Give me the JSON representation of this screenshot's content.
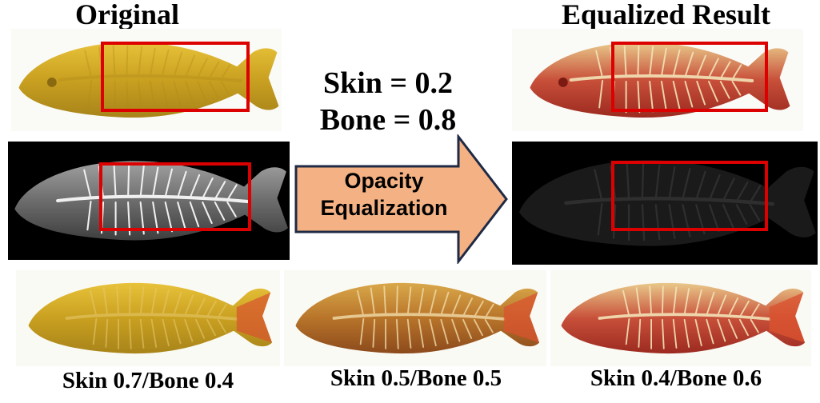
{
  "titles": {
    "original": "Original",
    "equalized": "Equalized Result"
  },
  "center": {
    "skin_param": "Skin = 0.2",
    "bone_param": "Bone = 0.8",
    "arrow_line1": "Opacity",
    "arrow_line2": "Equalization"
  },
  "captions": {
    "left": "Skin 0.7/Bone 0.4",
    "middle": "Skin 0.5/Bone 0.5",
    "right": "Skin 0.4/Bone 0.6"
  },
  "colors": {
    "highlight_box": "#dd0000",
    "arrow_fill": "#f4b183",
    "arrow_stroke": "#1f2a44",
    "xray_background": "#000000"
  }
}
